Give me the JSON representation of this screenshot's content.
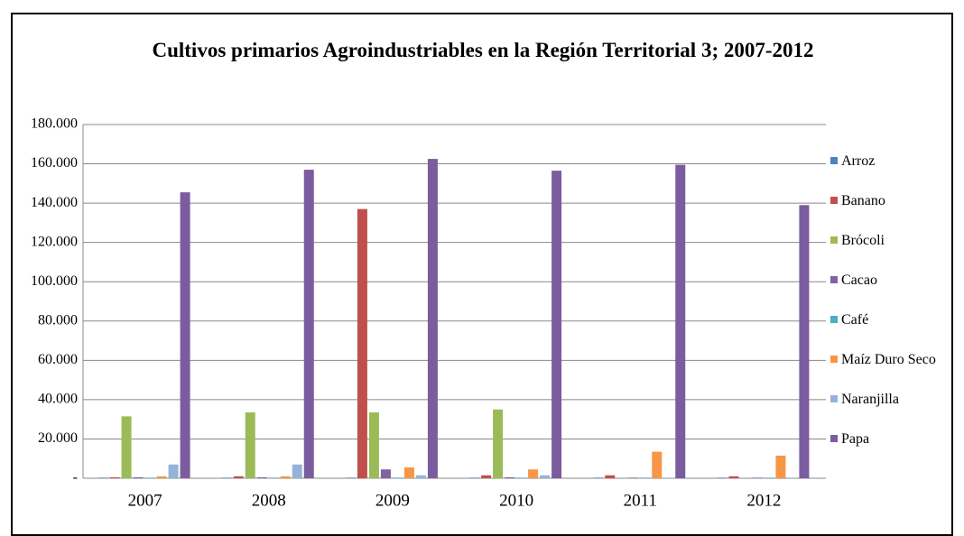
{
  "chart_data": {
    "type": "bar",
    "title": "Cultivos primarios Agroindustriables en la Región Territorial 3; 2007-2012",
    "categories": [
      "2007",
      "2008",
      "2009",
      "2010",
      "2011",
      "2012"
    ],
    "series": [
      {
        "name": "Arroz",
        "color": "#4f81bd",
        "values": [
          300,
          300,
          300,
          300,
          300,
          300
        ]
      },
      {
        "name": "Banano",
        "color": "#c0504d",
        "values": [
          500,
          1000,
          137000,
          1500,
          1500,
          1000
        ]
      },
      {
        "name": "Brócoli",
        "color": "#9bbb59",
        "values": [
          31500,
          33500,
          33500,
          35000,
          0,
          0
        ]
      },
      {
        "name": "Cacao",
        "color": "#8064a2",
        "values": [
          500,
          500,
          4500,
          500,
          300,
          300
        ]
      },
      {
        "name": "Café",
        "color": "#4bacc6",
        "values": [
          300,
          300,
          300,
          300,
          300,
          300
        ]
      },
      {
        "name": "Maíz Duro Seco",
        "color": "#f79646",
        "values": [
          1000,
          1000,
          5500,
          4500,
          13500,
          11500
        ]
      },
      {
        "name": "Naranjilla",
        "color": "#95b3d7",
        "values": [
          7000,
          7000,
          1500,
          1500,
          300,
          300
        ]
      },
      {
        "name": "Papa",
        "color": "#7b5c9e",
        "values": [
          145500,
          157000,
          162500,
          156500,
          159500,
          139000
        ]
      }
    ],
    "ylim": [
      0,
      180000
    ],
    "yticks": [
      {
        "value": 0,
        "label": "-"
      },
      {
        "value": 20000,
        "label": "20.000"
      },
      {
        "value": 40000,
        "label": "40.000"
      },
      {
        "value": 60000,
        "label": "60.000"
      },
      {
        "value": 80000,
        "label": "80.000"
      },
      {
        "value": 100000,
        "label": "100.000"
      },
      {
        "value": 120000,
        "label": "120.000"
      },
      {
        "value": 140000,
        "label": "140.000"
      },
      {
        "value": 160000,
        "label": "160.000"
      },
      {
        "value": 180000,
        "label": "180.000"
      }
    ],
    "grid": true,
    "legend": "right"
  }
}
